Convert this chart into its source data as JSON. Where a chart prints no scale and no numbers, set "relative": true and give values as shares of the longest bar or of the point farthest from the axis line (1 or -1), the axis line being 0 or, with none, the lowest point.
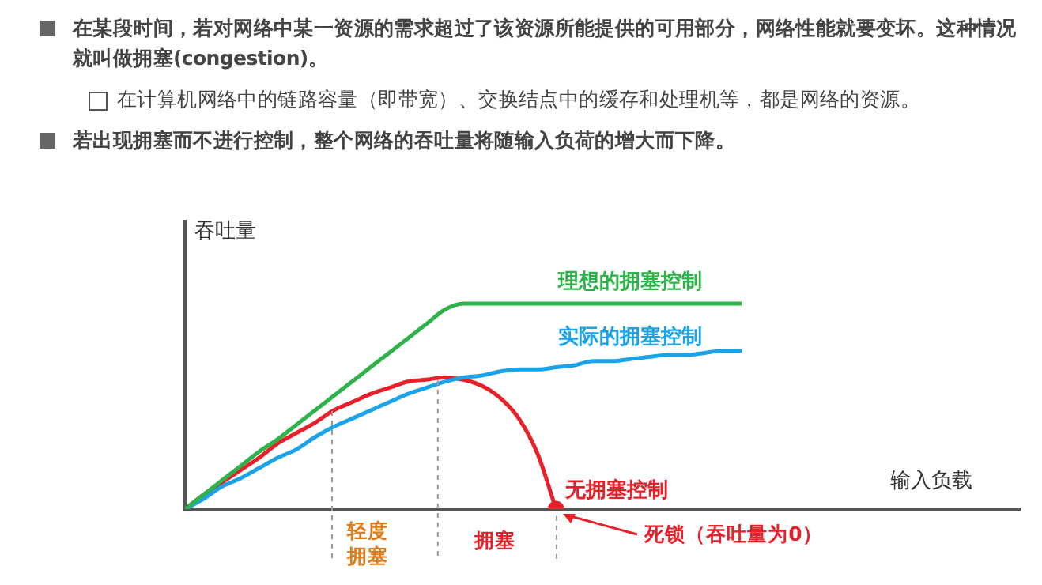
{
  "chart_data": {
    "type": "line",
    "relative": true,
    "ylabel": "吞吐量",
    "grid": false,
    "legend": false,
    "categories": [
      null,
      null,
      null,
      null,
      null,
      null,
      null,
      null,
      null,
      null,
      null,
      null,
      null,
      null,
      null,
      null,
      null,
      null,
      null,
      null,
      null,
      null,
      null,
      null,
      null,
      null,
      null,
      null,
      null,
      null,
      null
    ],
    "series": [
      {
        "name": "理想的拥塞控制",
        "color": "#2db34a",
        "values": [
          0,
          0.07,
          0.14,
          0.21,
          0.28,
          0.34,
          0.41,
          0.48,
          0.55,
          0.62,
          0.69,
          0.76,
          0.83,
          0.9,
          0.97,
          1,
          1,
          1,
          1,
          1,
          1,
          1,
          1,
          1,
          1,
          1,
          1,
          1,
          1,
          1,
          1
        ]
      },
      {
        "name": "实际的拥塞控制",
        "color": "#1aa3e8",
        "values": [
          0,
          0.05,
          0.11,
          0.15,
          0.2,
          0.25,
          0.29,
          0.35,
          0.4,
          0.44,
          0.48,
          0.52,
          0.56,
          0.59,
          0.62,
          0.64,
          0.65,
          0.67,
          0.68,
          0.68,
          0.69,
          0.7,
          0.72,
          0.72,
          0.73,
          0.74,
          0.75,
          0.75,
          0.76,
          0.77,
          0.77
        ]
      },
      {
        "name": "无拥塞控制",
        "color": "#e8202a",
        "values": [
          0,
          0.07,
          0.13,
          0.19,
          0.25,
          0.32,
          0.37,
          0.42,
          0.48,
          0.52,
          0.56,
          0.59,
          0.62,
          0.63,
          0.64,
          0.63,
          0.6,
          0.54,
          0.44,
          0.27,
          0,
          null,
          null,
          null,
          null,
          null,
          null,
          null,
          null,
          null,
          null
        ]
      }
    ],
    "annotations": [
      "在某段时间，若对网络中某一资源的需求超过了该资源所能提供的可用部分，网络性能就要变坏。这种情况就叫做拥塞(congestion)。",
      "在计算机网络中的链路容量（即带宽）、交换结点中的缓存和处理机等，都是网络的资源。",
      "若出现拥塞而不进行控制，整个网络的吞吐量将随输入负荷的增大而下降。",
      "轻度拥塞",
      "拥塞",
      "死锁（吞吐量为0）",
      "输入负载"
    ]
  }
}
